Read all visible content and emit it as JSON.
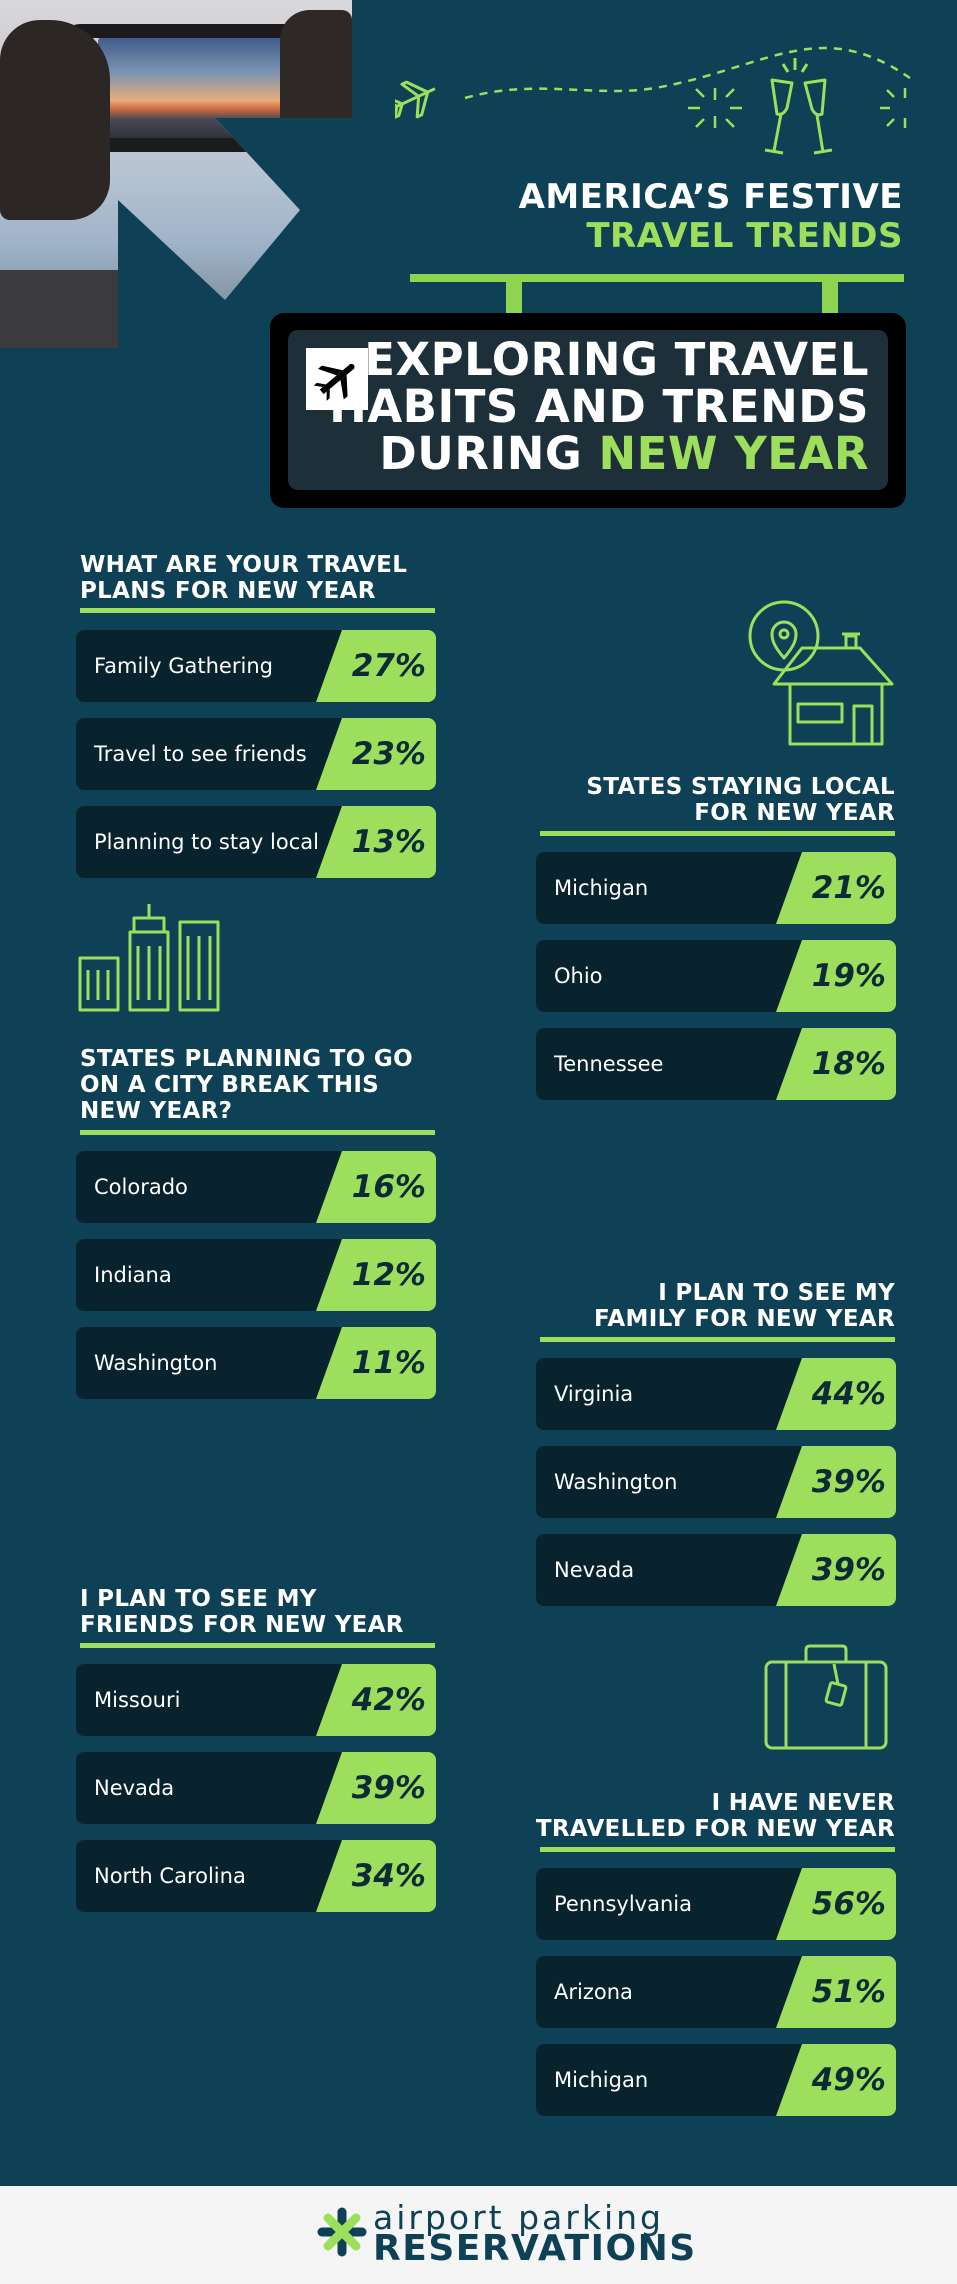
{
  "colors": {
    "background": "#0e4155",
    "accent": "#9ddf5d",
    "row_dark": "#08232d",
    "sign": "#000000"
  },
  "header": {
    "title_line1": "AMERICA’S FESTIVE",
    "title_line2": "TRAVEL TRENDS",
    "sign_line1": "EXPLORING TRAVEL",
    "sign_line2": "HABITS AND TRENDS",
    "sign_line3_white": "DURING ",
    "sign_line3_green": "NEW YEAR",
    "icons": [
      "airplane-icon",
      "champagne-glasses-icon",
      "firework-icon"
    ]
  },
  "sections": {
    "travel_plans": {
      "title_l1": "WHAT ARE YOUR TRAVEL",
      "title_l2": "PLANS FOR NEW YEAR",
      "rows": [
        {
          "label": "Family Gathering",
          "value": "27%"
        },
        {
          "label": "Travel to see friends",
          "value": "23%"
        },
        {
          "label": "Planning to stay local",
          "value": "13%"
        }
      ]
    },
    "staying_local": {
      "title_l1": "STATES STAYING LOCAL",
      "title_l2": "FOR NEW YEAR",
      "rows": [
        {
          "label": "Michigan",
          "value": "21%"
        },
        {
          "label": "Ohio",
          "value": "19%"
        },
        {
          "label": "Tennessee",
          "value": "18%"
        }
      ]
    },
    "city_break": {
      "title_l1": "STATES PLANNING TO GO",
      "title_l2": "ON A CITY BREAK THIS",
      "title_l3": "NEW YEAR?",
      "rows": [
        {
          "label": "Colorado",
          "value": "16%"
        },
        {
          "label": "Indiana",
          "value": "12%"
        },
        {
          "label": "Washington",
          "value": "11%"
        }
      ]
    },
    "see_family": {
      "title_l1": "I PLAN TO SEE MY",
      "title_l2": "FAMILY FOR NEW YEAR",
      "rows": [
        {
          "label": "Virginia",
          "value": "44%"
        },
        {
          "label": "Washington",
          "value": "39%"
        },
        {
          "label": "Nevada",
          "value": "39%"
        }
      ]
    },
    "see_friends": {
      "title_l1": "I PLAN TO SEE MY",
      "title_l2": "FRIENDS FOR NEW YEAR",
      "rows": [
        {
          "label": "Missouri",
          "value": "42%"
        },
        {
          "label": "Nevada",
          "value": "39%"
        },
        {
          "label": "North Carolina",
          "value": "34%"
        }
      ]
    },
    "never_travelled": {
      "title_l1": "I HAVE NEVER",
      "title_l2": "TRAVELLED FOR NEW YEAR",
      "rows": [
        {
          "label": "Pennsylvania",
          "value": "56%"
        },
        {
          "label": "Arizona",
          "value": "51%"
        },
        {
          "label": "Michigan",
          "value": "49%"
        }
      ]
    }
  },
  "footer": {
    "logo_top": "airport parking",
    "logo_bottom": "RESERVATIONS"
  }
}
